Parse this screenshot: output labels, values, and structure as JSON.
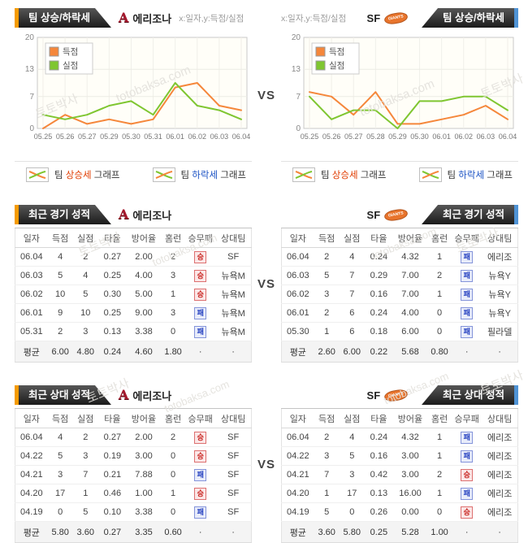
{
  "vs_label": "VS",
  "watermark": {
    "ko": "토토박사",
    "en": "totobaksa.com"
  },
  "teams": {
    "left": {
      "name": "에리조나",
      "logo": "A"
    },
    "right": {
      "name": "SF",
      "logo": "GIANTS"
    }
  },
  "trend": {
    "tab_label": "팀 상승/하락세",
    "hint": "x:일자,y:득점/실점",
    "legend_items": {
      "up": {
        "pre": "팀",
        "mid": "상승세",
        "post": "그래프"
      },
      "down": {
        "pre": "팀",
        "mid": "하락세",
        "post": "그래프"
      }
    }
  },
  "chart_data": [
    {
      "type": "line",
      "team": "에리조나",
      "x": [
        "05.25",
        "05.26",
        "05.27",
        "05.29",
        "05.30",
        "05.31",
        "06.01",
        "06.02",
        "06.03",
        "06.04"
      ],
      "series": [
        {
          "name": "득점",
          "color": "#f5873b",
          "values": [
            0,
            3,
            1,
            2,
            1,
            2,
            9,
            10,
            5,
            4
          ]
        },
        {
          "name": "실점",
          "color": "#7fc631",
          "values": [
            3,
            2,
            3,
            5,
            6,
            3,
            10,
            5,
            4,
            2
          ]
        }
      ],
      "ylim": [
        0,
        20
      ],
      "yticks": [
        0,
        7,
        13,
        20
      ],
      "xlabel": "일자",
      "ylabel": "득점/실점",
      "grid": true,
      "legend_position": "top-left"
    },
    {
      "type": "line",
      "team": "SF",
      "x": [
        "05.25",
        "05.26",
        "05.27",
        "05.28",
        "05.29",
        "05.30",
        "06.01",
        "06.02",
        "06.03",
        "06.04"
      ],
      "series": [
        {
          "name": "득점",
          "color": "#f5873b",
          "values": [
            8,
            7,
            3,
            8,
            1,
            1,
            2,
            3,
            5,
            2
          ]
        },
        {
          "name": "실점",
          "color": "#7fc631",
          "values": [
            7,
            2,
            4,
            4,
            0,
            6,
            6,
            7,
            7,
            4
          ]
        }
      ],
      "ylim": [
        0,
        20
      ],
      "yticks": [
        0,
        7,
        13,
        20
      ],
      "xlabel": "일자",
      "ylabel": "득점/실점",
      "grid": true,
      "legend_position": "top-left"
    }
  ],
  "tables": {
    "columns": [
      "일자",
      "득점",
      "실점",
      "타율",
      "방어율",
      "홈런",
      "승무패",
      "상대팀"
    ],
    "avg_label": "평균",
    "dot": "·",
    "recent": {
      "tab_label": "최근 경기 성적",
      "left": {
        "team": "에리조나",
        "rows": [
          {
            "cells": [
              "06.04",
              "4",
              "2",
              "0.27",
              "2.00",
              "2"
            ],
            "result": "승",
            "result_type": "win",
            "opp": "SF"
          },
          {
            "cells": [
              "06.03",
              "5",
              "4",
              "0.25",
              "4.00",
              "3"
            ],
            "result": "승",
            "result_type": "win",
            "opp": "뉴욕M"
          },
          {
            "cells": [
              "06.02",
              "10",
              "5",
              "0.30",
              "5.00",
              "1"
            ],
            "result": "승",
            "result_type": "win",
            "opp": "뉴욕M"
          },
          {
            "cells": [
              "06.01",
              "9",
              "10",
              "0.25",
              "9.00",
              "3"
            ],
            "result": "패",
            "result_type": "lose",
            "opp": "뉴욕M"
          },
          {
            "cells": [
              "05.31",
              "2",
              "3",
              "0.13",
              "3.38",
              "0"
            ],
            "result": "패",
            "result_type": "lose",
            "opp": "뉴욕M"
          }
        ],
        "avg": [
          "6.00",
          "4.80",
          "0.24",
          "4.60",
          "1.80"
        ]
      },
      "right": {
        "team": "SF",
        "rows": [
          {
            "cells": [
              "06.04",
              "2",
              "4",
              "0.24",
              "4.32",
              "1"
            ],
            "result": "패",
            "result_type": "lose",
            "opp": "에리조"
          },
          {
            "cells": [
              "06.03",
              "5",
              "7",
              "0.29",
              "7.00",
              "2"
            ],
            "result": "패",
            "result_type": "lose",
            "opp": "뉴욕Y"
          },
          {
            "cells": [
              "06.02",
              "3",
              "7",
              "0.16",
              "7.00",
              "1"
            ],
            "result": "패",
            "result_type": "lose",
            "opp": "뉴욕Y"
          },
          {
            "cells": [
              "06.01",
              "2",
              "6",
              "0.24",
              "4.00",
              "0"
            ],
            "result": "패",
            "result_type": "lose",
            "opp": "뉴욕Y"
          },
          {
            "cells": [
              "05.30",
              "1",
              "6",
              "0.18",
              "6.00",
              "0"
            ],
            "result": "패",
            "result_type": "lose",
            "opp": "필라델"
          }
        ],
        "avg": [
          "2.60",
          "6.00",
          "0.22",
          "5.68",
          "0.80"
        ]
      }
    },
    "h2h": {
      "tab_label": "최근 상대 성적",
      "left": {
        "team": "에리조나",
        "rows": [
          {
            "cells": [
              "06.04",
              "4",
              "2",
              "0.27",
              "2.00",
              "2"
            ],
            "result": "승",
            "result_type": "win",
            "opp": "SF"
          },
          {
            "cells": [
              "04.22",
              "5",
              "3",
              "0.19",
              "3.00",
              "0"
            ],
            "result": "승",
            "result_type": "win",
            "opp": "SF"
          },
          {
            "cells": [
              "04.21",
              "3",
              "7",
              "0.21",
              "7.88",
              "0"
            ],
            "result": "패",
            "result_type": "lose",
            "opp": "SF"
          },
          {
            "cells": [
              "04.20",
              "17",
              "1",
              "0.46",
              "1.00",
              "1"
            ],
            "result": "승",
            "result_type": "win",
            "opp": "SF"
          },
          {
            "cells": [
              "04.19",
              "0",
              "5",
              "0.10",
              "3.38",
              "0"
            ],
            "result": "패",
            "result_type": "lose",
            "opp": "SF"
          }
        ],
        "avg": [
          "5.80",
          "3.60",
          "0.27",
          "3.35",
          "0.60"
        ]
      },
      "right": {
        "team": "SF",
        "rows": [
          {
            "cells": [
              "06.04",
              "2",
              "4",
              "0.24",
              "4.32",
              "1"
            ],
            "result": "패",
            "result_type": "lose",
            "opp": "에리조"
          },
          {
            "cells": [
              "04.22",
              "3",
              "5",
              "0.16",
              "3.00",
              "1"
            ],
            "result": "패",
            "result_type": "lose",
            "opp": "에리조"
          },
          {
            "cells": [
              "04.21",
              "7",
              "3",
              "0.42",
              "3.00",
              "2"
            ],
            "result": "승",
            "result_type": "win",
            "opp": "에리조"
          },
          {
            "cells": [
              "04.20",
              "1",
              "17",
              "0.13",
              "16.00",
              "1"
            ],
            "result": "패",
            "result_type": "lose",
            "opp": "에리조"
          },
          {
            "cells": [
              "04.19",
              "5",
              "0",
              "0.26",
              "0.00",
              "0"
            ],
            "result": "승",
            "result_type": "win",
            "opp": "에리조"
          }
        ],
        "avg": [
          "3.60",
          "5.80",
          "0.25",
          "5.28",
          "1.00"
        ]
      }
    }
  }
}
